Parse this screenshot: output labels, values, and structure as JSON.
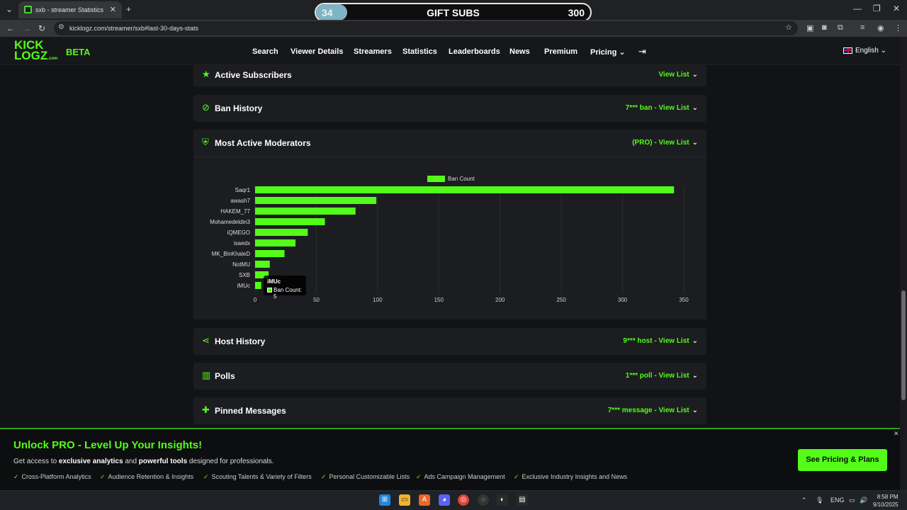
{
  "browser": {
    "tab_title": "sxb - streamer Statistics",
    "new_tab": "+",
    "url": "kicklogz.com/streamer/sxb#last-30-days-stats"
  },
  "gift_subs": {
    "current": "34",
    "label": "GIFT SUBS",
    "goal": "300",
    "progress": 0.113
  },
  "site": {
    "logo_top": "KICK",
    "logo_bottom": "LOGZ",
    "logo_com": ".com",
    "beta": "BETA",
    "nav": [
      "Search",
      "Viewer Details",
      "Streamers",
      "Statistics",
      "Leaderboards",
      "News",
      "Premium",
      "Pricing"
    ],
    "language": "English"
  },
  "panels": {
    "active_subscribers": {
      "title": "Active Subscribers",
      "link": "View List"
    },
    "ban_history": {
      "title": "Ban History",
      "link": "7*** ban - View List"
    },
    "most_active_moderators": {
      "title": "Most Active Moderators",
      "link": "(PRO) - View List"
    },
    "host_history": {
      "title": "Host History",
      "link": "9*** host - View List"
    },
    "polls": {
      "title": "Polls",
      "link": "1*** poll - View List"
    },
    "pinned_messages": {
      "title": "Pinned Messages",
      "link": "7*** message - View List"
    }
  },
  "chart_data": {
    "type": "bar",
    "orientation": "horizontal",
    "categories": [
      "Saqr1",
      "awash7",
      "HAKEM_77",
      "Mohamedeldin3",
      "iQMEGO",
      "isaedx",
      "MK_BinKhaleD",
      "NotMU",
      "SXB",
      "iMUc"
    ],
    "series": [
      {
        "name": "Ban Count",
        "values": [
          342,
          99,
          82,
          57,
          43,
          33,
          24,
          12,
          11,
          5
        ]
      }
    ],
    "xlim": [
      0,
      350
    ],
    "xticks": [
      0,
      50,
      100,
      150,
      200,
      250,
      300,
      350
    ],
    "legend": "top-center",
    "grid": true,
    "color": "#53fc18",
    "tooltip": {
      "title": "iMUc",
      "label": "Ban Count: 5"
    }
  },
  "promo": {
    "title": "Unlock PRO - Level Up Your Insights!",
    "sub_1": "Get access to ",
    "sub_b1": "exclusive analytics",
    "sub_2": " and ",
    "sub_b2": "powerful tools",
    "sub_3": " designed for professionals.",
    "features": [
      "Cross-Platform Analytics",
      "Audience Retention & Insights",
      "Scouting Talents & Variety of Filters",
      "Personal Customizable Lists",
      "Ads Campaign Management",
      "Exclusive Industry Insights and News"
    ],
    "button": "See Pricing & Plans"
  },
  "taskbar": {
    "lang": "ENG",
    "time": "8:58 PM",
    "date": "9/10/2025"
  }
}
